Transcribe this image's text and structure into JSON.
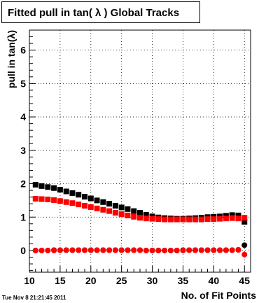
{
  "timestamp": "Tue Nov  8 21:21:45 2011",
  "chart_data": {
    "type": "scatter",
    "title": "Fitted pull in tan( λ )  Global Tracks",
    "xlabel": "No. of Fit Points",
    "ylabel": "pull in tan(λ)",
    "xlim": [
      10,
      46
    ],
    "ylim": [
      -0.65,
      6.6
    ],
    "x_ticks": [
      10,
      15,
      20,
      25,
      30,
      35,
      40,
      45
    ],
    "x_tick_labels": [
      "10",
      "15",
      "20",
      "25",
      "30",
      "35",
      "40",
      "45"
    ],
    "y_ticks": [
      0,
      1,
      2,
      3,
      4,
      5,
      6
    ],
    "y_tick_labels": [
      "0",
      "1",
      "2",
      "3",
      "4",
      "5",
      "6"
    ],
    "grid": true,
    "legend": "none",
    "series": [
      {
        "color": "#000000",
        "marker": "square",
        "x": [
          11,
          12,
          13,
          14,
          15,
          16,
          17,
          18,
          19,
          20,
          21,
          22,
          23,
          24,
          25,
          26,
          27,
          28,
          29,
          30,
          31,
          32,
          33,
          34,
          35,
          36,
          37,
          38,
          39,
          40,
          41,
          42,
          43,
          44,
          45
        ],
        "y": [
          1.97,
          1.93,
          1.9,
          1.87,
          1.82,
          1.77,
          1.72,
          1.67,
          1.61,
          1.56,
          1.5,
          1.45,
          1.4,
          1.34,
          1.29,
          1.24,
          1.18,
          1.13,
          1.07,
          1.02,
          0.99,
          0.97,
          0.96,
          0.95,
          0.95,
          0.96,
          0.97,
          0.98,
          1.0,
          1.01,
          1.02,
          1.04,
          1.06,
          1.05,
          0.86
        ]
      },
      {
        "color": "#ff0000",
        "marker": "square",
        "x": [
          11,
          12,
          13,
          14,
          15,
          16,
          17,
          18,
          19,
          20,
          21,
          22,
          23,
          24,
          25,
          26,
          27,
          28,
          29,
          30,
          31,
          32,
          33,
          34,
          35,
          36,
          37,
          38,
          39,
          40,
          41,
          42,
          43,
          44,
          45
        ],
        "y": [
          1.55,
          1.54,
          1.53,
          1.51,
          1.48,
          1.45,
          1.42,
          1.38,
          1.34,
          1.3,
          1.26,
          1.22,
          1.18,
          1.13,
          1.09,
          1.05,
          1.01,
          0.98,
          0.96,
          0.95,
          0.94,
          0.93,
          0.93,
          0.93,
          0.93,
          0.93,
          0.93,
          0.93,
          0.94,
          0.94,
          0.95,
          0.96,
          0.97,
          0.96,
          0.98
        ]
      },
      {
        "color": "#000000",
        "marker": "circle",
        "x": [
          11,
          12,
          13,
          14,
          15,
          16,
          17,
          18,
          19,
          20,
          21,
          22,
          23,
          24,
          25,
          26,
          27,
          28,
          29,
          30,
          31,
          32,
          33,
          34,
          35,
          36,
          37,
          38,
          39,
          40,
          41,
          42,
          43,
          44,
          45
        ],
        "y": [
          0.0,
          0.0,
          0.0,
          0.01,
          0.01,
          0.01,
          0.01,
          0.01,
          0.01,
          0.01,
          0.01,
          0.01,
          0.01,
          0.01,
          0.01,
          0.01,
          0.01,
          0.01,
          0.0,
          0.0,
          0.0,
          0.0,
          0.0,
          0.0,
          0.01,
          0.01,
          0.01,
          0.01,
          0.01,
          0.01,
          0.01,
          0.01,
          0.01,
          0.02,
          0.16
        ]
      },
      {
        "color": "#ff0000",
        "marker": "circle",
        "x": [
          11,
          12,
          13,
          14,
          15,
          16,
          17,
          18,
          19,
          20,
          21,
          22,
          23,
          24,
          25,
          26,
          27,
          28,
          29,
          30,
          31,
          32,
          33,
          34,
          35,
          36,
          37,
          38,
          39,
          40,
          41,
          42,
          43,
          44,
          45
        ],
        "y": [
          0.0,
          0.0,
          0.0,
          0.0,
          0.01,
          0.01,
          0.01,
          0.01,
          0.01,
          0.01,
          0.01,
          0.01,
          0.01,
          0.01,
          0.01,
          0.01,
          0.01,
          0.01,
          0.0,
          0.0,
          0.0,
          0.0,
          0.0,
          0.0,
          0.0,
          0.01,
          0.01,
          0.01,
          0.01,
          0.01,
          0.01,
          0.01,
          0.01,
          0.02,
          -0.12
        ]
      }
    ]
  }
}
